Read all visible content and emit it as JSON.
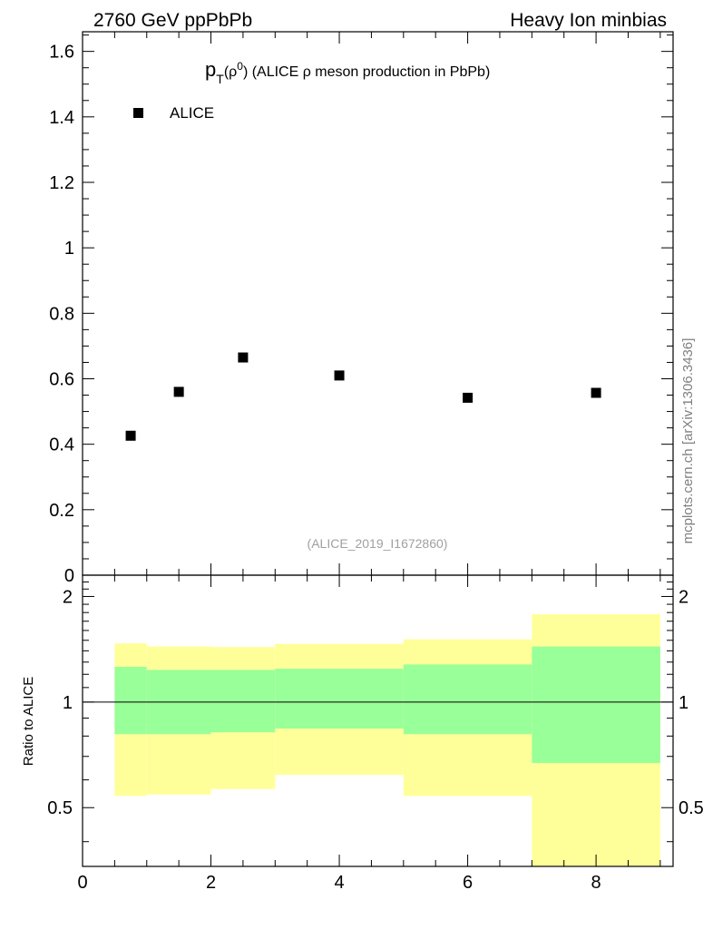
{
  "header": {
    "left": "2760 GeV ppPbPb",
    "right": "Heavy Ion minbias"
  },
  "side_label": "mcplots.cern.ch [arXiv:1306.3436]",
  "chart_data": [
    {
      "type": "scatter",
      "title_main": "p",
      "title_sub": "T",
      "title_rho": "(ρ",
      "title_sup": "0",
      "title_rest": ") (ALICE ρ meson production in PbPb)",
      "legend": {
        "label": "ALICE",
        "position": "top-left"
      },
      "analysis_tag": "(ALICE_2019_I1672860)",
      "xlim": [
        0,
        9.2
      ],
      "ylim": [
        0,
        1.66
      ],
      "yticks": [
        0,
        0.2,
        0.4,
        0.6,
        0.8,
        1,
        1.2,
        1.4,
        1.6
      ],
      "ytick_labels": [
        "0",
        "0.2",
        "0.4",
        "0.6",
        "0.8",
        "1",
        "1.2",
        "1.4",
        "1.6"
      ],
      "series": [
        {
          "name": "ALICE",
          "color": "#000000",
          "marker": "square",
          "x": [
            0.75,
            1.5,
            2.5,
            4.0,
            6.0,
            8.0
          ],
          "y": [
            0.426,
            0.56,
            0.665,
            0.61,
            0.542,
            0.557
          ]
        }
      ]
    },
    {
      "type": "area",
      "ylabel": "Ratio to ALICE",
      "ylim": [
        0.34,
        2.3
      ],
      "yticks": [
        0.5,
        1,
        2
      ],
      "ytick_labels": [
        "0.5",
        "1",
        "2"
      ],
      "xlim": [
        0,
        9.2
      ],
      "xticks": [
        0,
        2,
        4,
        6,
        8
      ],
      "xtick_labels": [
        "0",
        "2",
        "4",
        "6",
        "8"
      ],
      "reference_line": 1,
      "band_colors": {
        "outer": "#ffff99",
        "inner": "#99ff99"
      },
      "bins": [
        {
          "lo": 0.5,
          "hi": 1.0,
          "outer_low": 0.54,
          "outer_high": 1.47,
          "inner_low": 0.81,
          "inner_high": 1.26
        },
        {
          "lo": 1.0,
          "hi": 2.0,
          "outer_low": 0.545,
          "outer_high": 1.44,
          "inner_low": 0.81,
          "inner_high": 1.235
        },
        {
          "lo": 2.0,
          "hi": 3.0,
          "outer_low": 0.565,
          "outer_high": 1.435,
          "inner_low": 0.82,
          "inner_high": 1.235
        },
        {
          "lo": 3.0,
          "hi": 5.0,
          "outer_low": 0.62,
          "outer_high": 1.465,
          "inner_low": 0.84,
          "inner_high": 1.245
        },
        {
          "lo": 5.0,
          "hi": 7.0,
          "outer_low": 0.54,
          "outer_high": 1.51,
          "inner_low": 0.81,
          "inner_high": 1.28
        },
        {
          "lo": 7.0,
          "hi": 9.0,
          "outer_low": 0.34,
          "outer_high": 1.78,
          "inner_low": 0.67,
          "inner_high": 1.44
        }
      ]
    }
  ]
}
